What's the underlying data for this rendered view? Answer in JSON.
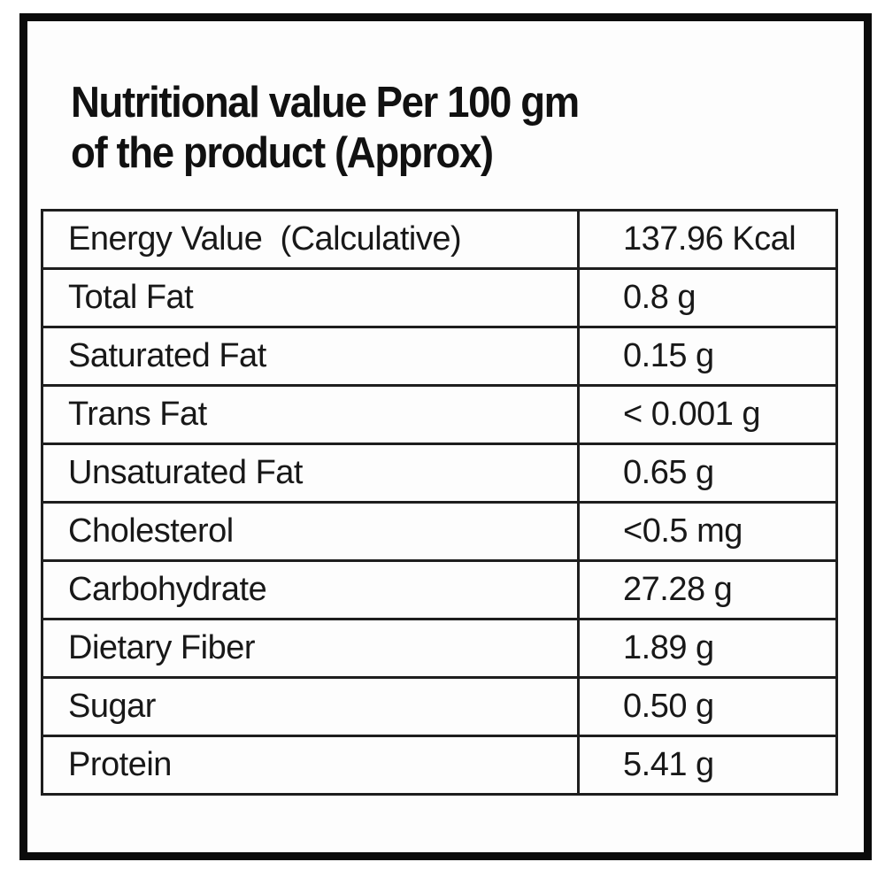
{
  "header": {
    "title_line1": "Nutritional value Per 100 gm",
    "title_line2": "of the product (Approx)"
  },
  "table": {
    "rows": [
      {
        "label": "Energy Value  (Calculative)",
        "value": "137.96 Kcal"
      },
      {
        "label": "Total Fat",
        "value": "0.8 g"
      },
      {
        "label": "Saturated Fat",
        "value": "0.15 g"
      },
      {
        "label": "Trans Fat",
        "value": "< 0.001 g"
      },
      {
        "label": "Unsaturated Fat",
        "value": "0.65 g"
      },
      {
        "label": "Cholesterol",
        "value": "<0.5 mg"
      },
      {
        "label": "Carbohydrate",
        "value": "27.28 g"
      },
      {
        "label": "Dietary Fiber",
        "value": "1.89 g"
      },
      {
        "label": "Sugar",
        "value": "0.50 g"
      },
      {
        "label": "Protein",
        "value": "5.41 g"
      }
    ]
  },
  "colors": {
    "text": "#181818",
    "border": "#1e1e1e",
    "frame": "#0b0b0b",
    "background": "#ffffff"
  }
}
